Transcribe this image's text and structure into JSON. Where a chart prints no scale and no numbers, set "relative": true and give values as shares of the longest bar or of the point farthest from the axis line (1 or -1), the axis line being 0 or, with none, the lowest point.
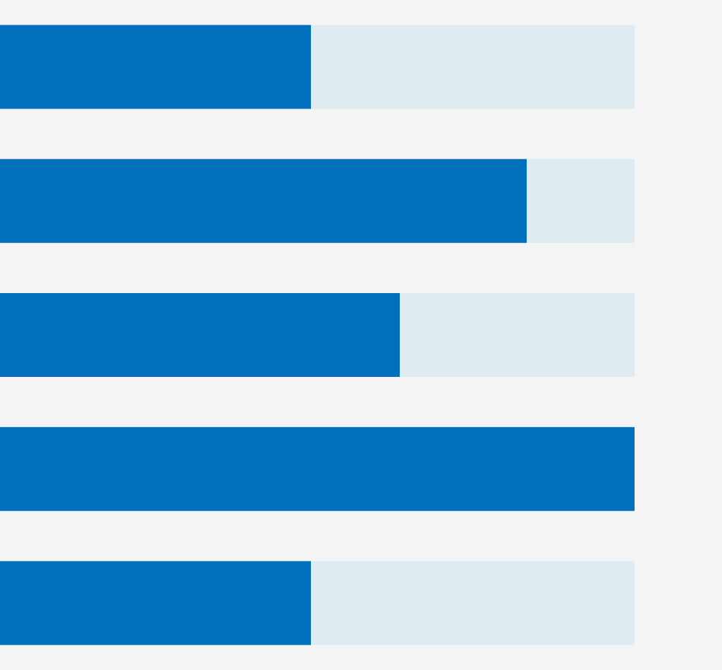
{
  "chart_data": {
    "type": "bar",
    "orientation": "horizontal",
    "relative": true,
    "categories": [
      null,
      null,
      null,
      null,
      null
    ],
    "values": [
      0.49,
      0.83,
      0.63,
      1,
      0.49
    ],
    "color": "#0070bc"
  }
}
